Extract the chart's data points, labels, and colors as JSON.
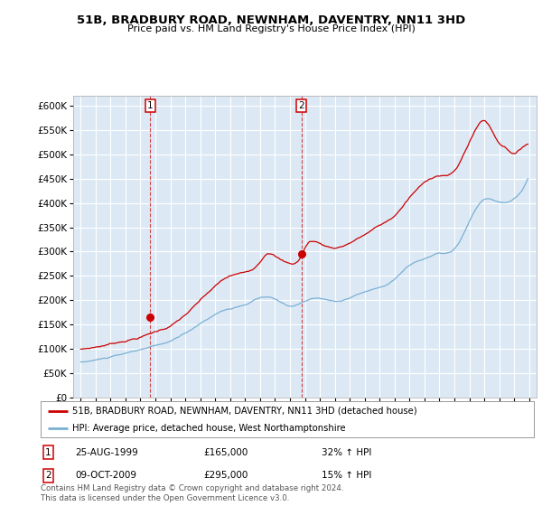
{
  "title": "51B, BRADBURY ROAD, NEWNHAM, DAVENTRY, NN11 3HD",
  "subtitle": "Price paid vs. HM Land Registry's House Price Index (HPI)",
  "ylim": [
    0,
    620000
  ],
  "yticks": [
    0,
    50000,
    100000,
    150000,
    200000,
    250000,
    300000,
    350000,
    400000,
    450000,
    500000,
    550000,
    600000
  ],
  "ytick_labels": [
    "£0",
    "£50K",
    "£100K",
    "£150K",
    "£200K",
    "£250K",
    "£300K",
    "£350K",
    "£400K",
    "£450K",
    "£500K",
    "£550K",
    "£600K"
  ],
  "background_color": "#ffffff",
  "plot_bg_color": "#dce9f5",
  "grid_color": "#ffffff",
  "sale1_date": "25-AUG-1999",
  "sale1_price": 165000,
  "sale1_pct": "32% ↑ HPI",
  "sale2_date": "09-OCT-2009",
  "sale2_price": 295000,
  "sale2_pct": "15% ↑ HPI",
  "legend_line1": "51B, BRADBURY ROAD, NEWNHAM, DAVENTRY, NN11 3HD (detached house)",
  "legend_line2": "HPI: Average price, detached house, West Northamptonshire",
  "footer": "Contains HM Land Registry data © Crown copyright and database right 2024.\nThis data is licensed under the Open Government Licence v3.0.",
  "line_red_color": "#cc0000",
  "line_blue_color": "#7ab0d4",
  "marker1_x": 1999.65,
  "marker1_y": 165000,
  "marker2_x": 2009.78,
  "marker2_y": 295000,
  "vline_color": "#cc0000",
  "xlim_left": 1994.5,
  "xlim_right": 2025.5,
  "xticks_start": 1995,
  "xticks_end": 2025
}
